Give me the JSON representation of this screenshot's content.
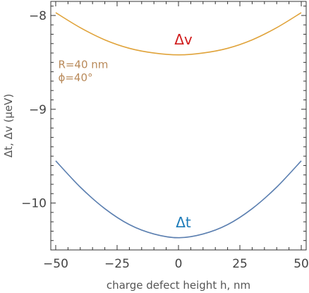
{
  "chart_data": {
    "type": "line",
    "xlabel": "charge defect height h, nm",
    "ylabel": "Δt, Δv (μeV)",
    "xlim": [
      -52,
      52
    ],
    "ylim": [
      -10.5,
      -7.85
    ],
    "x_ticks": [
      -50,
      -25,
      0,
      25,
      50
    ],
    "x_tick_labels": [
      "−50",
      "−25",
      "0",
      "25",
      "50"
    ],
    "y_ticks": [
      -10,
      -9,
      -8
    ],
    "y_tick_labels": [
      "−10",
      "−9",
      "−8"
    ],
    "grid": false,
    "series": [
      {
        "name": "Δv",
        "color": "#e0a33a",
        "label_color": "#d01c1c",
        "label_pos": [
          2,
          -8.31
        ],
        "x": [
          -50,
          -40,
          -30,
          -20,
          -10,
          0,
          10,
          20,
          30,
          40,
          50
        ],
        "y": [
          -7.97,
          -8.13,
          -8.26,
          -8.35,
          -8.4,
          -8.42,
          -8.4,
          -8.35,
          -8.26,
          -8.13,
          -7.97
        ]
      },
      {
        "name": "Δt",
        "color": "#5b7fb0",
        "label_color": "#1a7ab8",
        "label_pos": [
          2,
          -10.26
        ],
        "x": [
          -50,
          -40,
          -30,
          -20,
          -10,
          0,
          10,
          20,
          30,
          40,
          50
        ],
        "y": [
          -9.55,
          -9.83,
          -10.06,
          -10.23,
          -10.33,
          -10.37,
          -10.33,
          -10.23,
          -10.06,
          -9.83,
          -9.55
        ]
      }
    ],
    "annotations": [
      {
        "text": "R=40 nm",
        "color": "#b98a5a",
        "pos": [
          -49,
          -8.56
        ]
      },
      {
        "text": "ϕ=40°",
        "color": "#b98a5a",
        "pos": [
          -49,
          -8.7
        ]
      }
    ]
  }
}
